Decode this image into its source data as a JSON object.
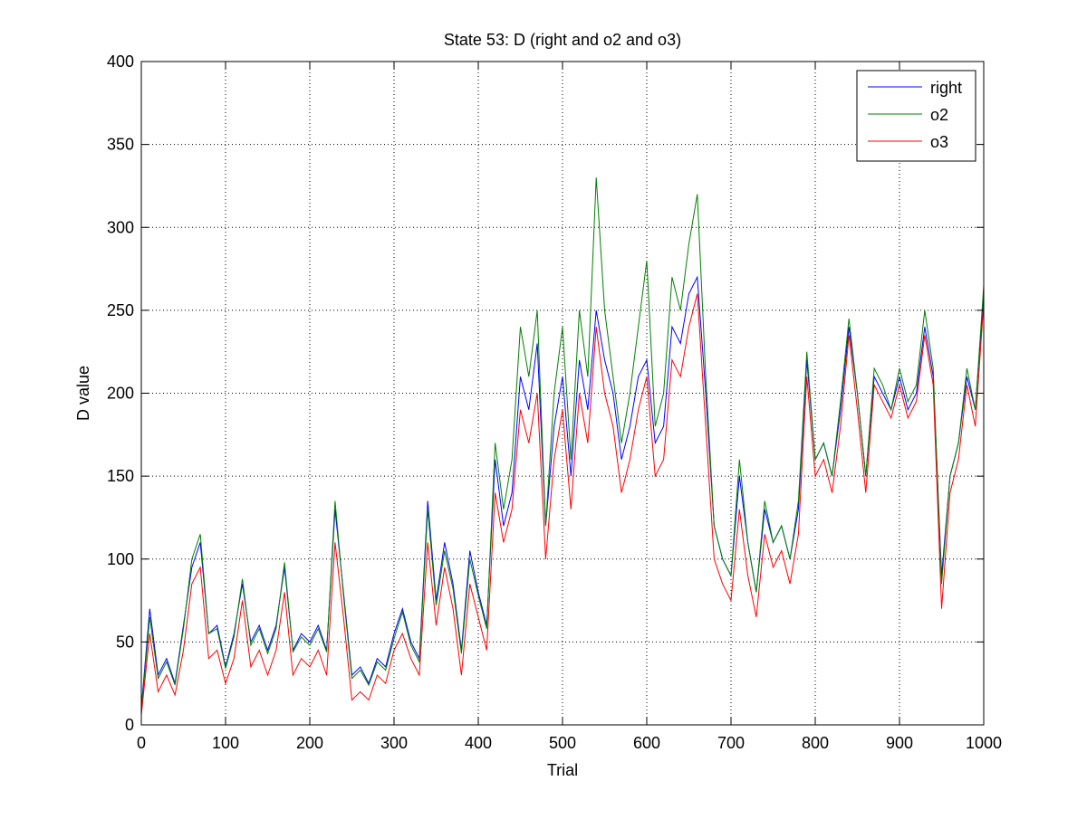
{
  "chart_data": {
    "type": "line",
    "title": "State 53: D (right and o2 and o3)",
    "xlabel": "Trial",
    "ylabel": "D value",
    "xlim": [
      0,
      1000
    ],
    "ylim": [
      0,
      400
    ],
    "xticks": [
      "0",
      "100",
      "200",
      "300",
      "400",
      "500",
      "600",
      "700",
      "800",
      "900",
      "1000"
    ],
    "yticks": [
      "0",
      "50",
      "100",
      "150",
      "200",
      "250",
      "300",
      "350",
      "400"
    ],
    "grid": true,
    "legend_position": "top-right",
    "x": [
      0,
      10,
      20,
      30,
      40,
      50,
      60,
      70,
      80,
      90,
      100,
      110,
      120,
      130,
      140,
      150,
      160,
      170,
      180,
      190,
      200,
      210,
      220,
      230,
      240,
      250,
      260,
      270,
      280,
      290,
      300,
      310,
      320,
      330,
      340,
      350,
      360,
      370,
      380,
      390,
      400,
      410,
      420,
      430,
      440,
      450,
      460,
      470,
      480,
      490,
      500,
      510,
      520,
      530,
      540,
      550,
      560,
      570,
      580,
      590,
      600,
      610,
      620,
      630,
      640,
      650,
      660,
      670,
      680,
      690,
      700,
      710,
      720,
      730,
      740,
      750,
      760,
      770,
      780,
      790,
      800,
      810,
      820,
      830,
      840,
      850,
      860,
      870,
      880,
      890,
      900,
      910,
      920,
      930,
      940,
      950,
      960,
      970,
      980,
      990,
      1000
    ],
    "series": [
      {
        "name": "right",
        "color": "#0000ff",
        "values": [
          10,
          70,
          30,
          40,
          25,
          60,
          95,
          110,
          55,
          60,
          35,
          55,
          85,
          50,
          60,
          45,
          60,
          95,
          45,
          55,
          50,
          60,
          45,
          130,
          80,
          30,
          35,
          25,
          40,
          35,
          55,
          70,
          50,
          40,
          135,
          75,
          110,
          85,
          45,
          105,
          80,
          60,
          160,
          120,
          140,
          210,
          190,
          230,
          120,
          180,
          210,
          150,
          220,
          190,
          250,
          220,
          200,
          160,
          180,
          210,
          220,
          170,
          180,
          240,
          230,
          260,
          270,
          200,
          120,
          100,
          90,
          150,
          110,
          80,
          130,
          110,
          120,
          100,
          130,
          220,
          160,
          170,
          150,
          190,
          240,
          200,
          150,
          210,
          200,
          190,
          210,
          190,
          200,
          240,
          210,
          90,
          150,
          170,
          210,
          190,
          260
        ]
      },
      {
        "name": "o2",
        "color": "#008000",
        "values": [
          8,
          65,
          28,
          38,
          24,
          58,
          100,
          115,
          55,
          58,
          34,
          53,
          88,
          48,
          58,
          43,
          58,
          98,
          44,
          53,
          48,
          58,
          44,
          135,
          78,
          28,
          33,
          24,
          38,
          33,
          52,
          68,
          48,
          38,
          130,
          72,
          105,
          82,
          43,
          100,
          78,
          58,
          170,
          130,
          160,
          240,
          210,
          250,
          120,
          200,
          240,
          160,
          250,
          210,
          330,
          250,
          210,
          170,
          200,
          240,
          280,
          180,
          200,
          270,
          250,
          290,
          320,
          210,
          120,
          100,
          90,
          160,
          110,
          80,
          135,
          110,
          120,
          100,
          135,
          225,
          160,
          170,
          150,
          195,
          245,
          200,
          150,
          215,
          205,
          190,
          215,
          195,
          205,
          250,
          215,
          85,
          150,
          170,
          215,
          190,
          265
        ]
      },
      {
        "name": "o3",
        "color": "#ff0000",
        "values": [
          6,
          55,
          20,
          30,
          18,
          45,
          85,
          95,
          40,
          45,
          25,
          40,
          75,
          35,
          45,
          30,
          45,
          80,
          30,
          40,
          35,
          45,
          30,
          110,
          65,
          15,
          20,
          15,
          30,
          25,
          45,
          55,
          40,
          30,
          110,
          60,
          95,
          70,
          30,
          85,
          65,
          45,
          140,
          110,
          130,
          190,
          170,
          200,
          100,
          160,
          190,
          130,
          200,
          170,
          240,
          200,
          180,
          140,
          160,
          190,
          210,
          150,
          160,
          220,
          210,
          240,
          260,
          180,
          100,
          85,
          75,
          130,
          90,
          65,
          115,
          95,
          105,
          85,
          115,
          210,
          150,
          160,
          140,
          180,
          235,
          190,
          140,
          205,
          195,
          185,
          205,
          185,
          195,
          235,
          205,
          70,
          140,
          160,
          205,
          180,
          255
        ]
      }
    ]
  }
}
